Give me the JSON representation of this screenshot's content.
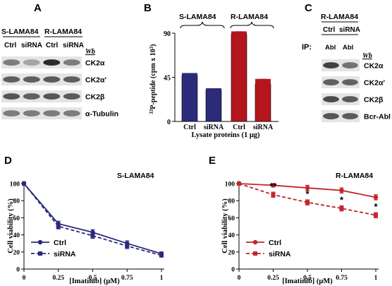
{
  "panelA": {
    "letter": "A",
    "group_left": "S-LAMA84",
    "group_right": "R-LAMA84",
    "lanes": [
      "Ctrl",
      "siRNA",
      "Ctrl",
      "siRNA"
    ],
    "wb": "Wb",
    "rows": [
      {
        "label": "CK2α",
        "intensities": [
          0.55,
          0.35,
          0.95,
          0.55
        ]
      },
      {
        "label": "CK2α'",
        "intensities": [
          0.7,
          0.7,
          0.72,
          0.7
        ]
      },
      {
        "label": "CK2β",
        "intensities": [
          0.75,
          0.7,
          0.75,
          0.72
        ]
      },
      {
        "label": "α-Tubulin",
        "intensities": [
          0.55,
          0.55,
          0.55,
          0.55
        ]
      }
    ]
  },
  "panelB": {
    "letter": "B",
    "group_left": "S-LAMA84",
    "group_right": "R-LAMA84",
    "xlabel": "Lysate proteins (1 μg)",
    "ylabel_sup": "33",
    "ylabel_main": "P-peptide (cpm x 10",
    "ylabel_sup2": "3",
    "ylabel_end": ")",
    "colors": {
      "S": "#2b2b7a",
      "R": "#b4161e"
    }
  },
  "panelC": {
    "letter": "C",
    "group": "R-LAMA84",
    "lanes": [
      "Ctrl",
      "siRNA"
    ],
    "ip_label": "IP:",
    "ip_lanes": [
      "Abl",
      "Abl"
    ],
    "wb": "Wb",
    "rows": [
      {
        "label": "CK2α",
        "intensities": [
          0.85,
          0.6
        ]
      },
      {
        "label": "CK2α'",
        "intensities": [
          0.7,
          0.68
        ]
      },
      {
        "label": "CK2β",
        "intensities": [
          0.8,
          0.72
        ]
      },
      {
        "label": "Bcr-Abl",
        "intensities": [
          0.75,
          0.72
        ]
      }
    ]
  },
  "panelD": {
    "letter": "D",
    "cell_line": "S-LAMA84",
    "xlabel": "[Imatinib] (μM)",
    "ylabel": "Cell viability (%)",
    "color": "#2b2b7a",
    "legend": [
      "Ctrl",
      "siRNA"
    ]
  },
  "panelE": {
    "letter": "E",
    "cell_line": "R-LAMA84",
    "xlabel": "[Imatinib] (μM)",
    "ylabel": "Cell viability (%)",
    "color": "#c0272d",
    "legend": [
      "Ctrl",
      "siRNA"
    ],
    "stars": [
      "**",
      "*",
      "*",
      "*"
    ]
  },
  "chart_data": [
    {
      "type": "bar",
      "panel": "B",
      "categories": [
        "Ctrl",
        "siRNA",
        "Ctrl",
        "siRNA"
      ],
      "groups": [
        "S-LAMA84",
        "S-LAMA84",
        "R-LAMA84",
        "R-LAMA84"
      ],
      "values": [
        47,
        32,
        89,
        38
      ],
      "errors": [
        2,
        1.5,
        2.5,
        5
      ],
      "ylim": [
        0,
        90
      ],
      "yticks": [
        0,
        45,
        90
      ],
      "xlabel": "Lysate proteins (1 μg)",
      "ylabel": "33P-peptide (cpm x 10^3)"
    },
    {
      "type": "line",
      "panel": "D",
      "title": "S-LAMA84",
      "x": [
        0,
        0.25,
        0.5,
        0.75,
        1
      ],
      "xticks": [
        "0",
        "0.25",
        "0.5",
        "0.75",
        "1"
      ],
      "series": [
        {
          "name": "Ctrl",
          "values": [
            100,
            53,
            43,
            30,
            18
          ],
          "errors": [
            0,
            3,
            3,
            3,
            2
          ]
        },
        {
          "name": "siRNA",
          "values": [
            100,
            50,
            39,
            27,
            16
          ],
          "errors": [
            0,
            3,
            3,
            3,
            2
          ]
        }
      ],
      "ylim": [
        0,
        100
      ],
      "yticks": [
        0,
        20,
        40,
        60,
        80,
        100
      ],
      "xlabel": "[Imatinib] (μM)",
      "ylabel": "Cell viability (%)"
    },
    {
      "type": "line",
      "panel": "E",
      "title": "R-LAMA84",
      "x": [
        0,
        0.25,
        0.5,
        0.75,
        1
      ],
      "xticks": [
        "0",
        "0.25",
        "0.5",
        "0.75",
        "1"
      ],
      "series": [
        {
          "name": "Ctrl",
          "values": [
            100,
            98,
            95,
            92,
            84
          ],
          "errors": [
            0,
            2,
            3,
            3,
            3
          ]
        },
        {
          "name": "siRNA",
          "values": [
            100,
            87,
            78,
            71,
            63
          ],
          "errors": [
            0,
            3,
            3,
            3,
            3
          ]
        }
      ],
      "ylim": [
        0,
        100
      ],
      "yticks": [
        0,
        20,
        40,
        60,
        80,
        100
      ],
      "xlabel": "[Imatinib] (μM)",
      "ylabel": "Cell viability (%)"
    }
  ]
}
